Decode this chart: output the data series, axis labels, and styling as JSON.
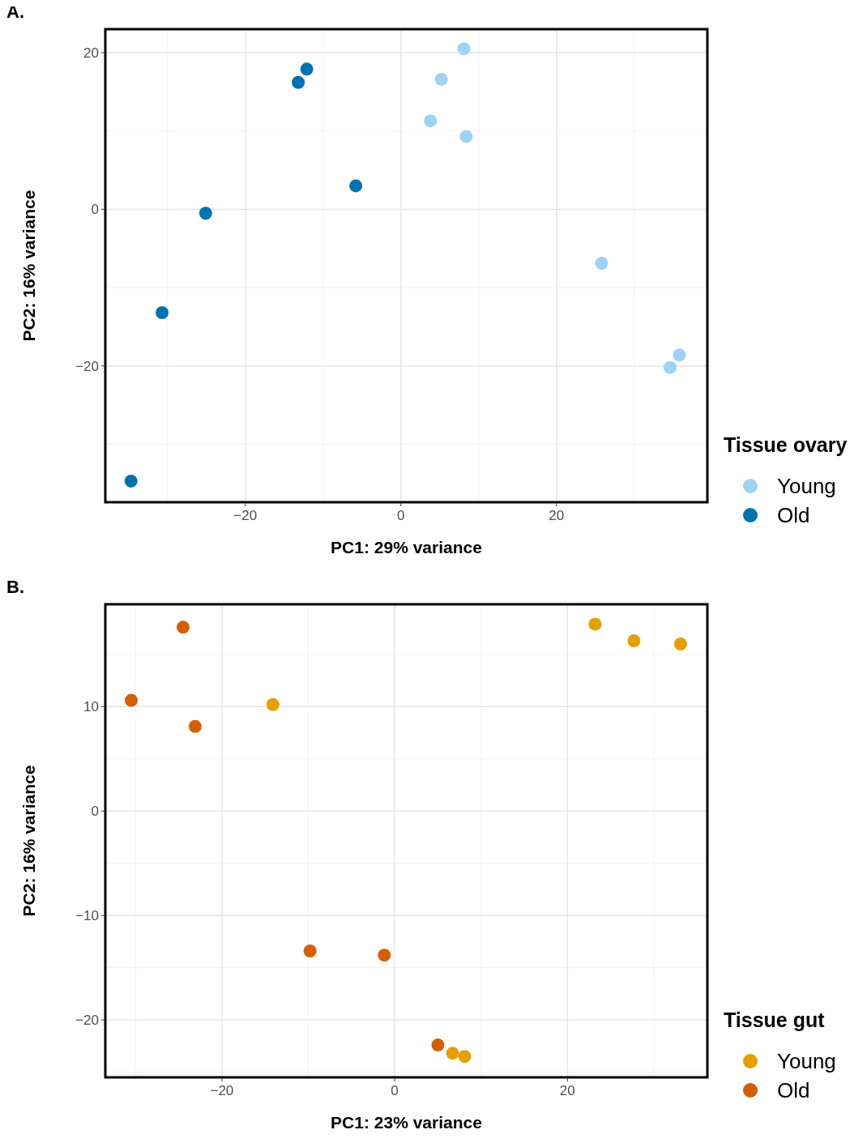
{
  "chart_data": [
    {
      "type": "scatter",
      "title": "A.",
      "xlabel": "PC1: 29% variance",
      "ylabel": "PC2: 16% variance",
      "legend_title": "Tissue ovary",
      "legend": "right",
      "grid": true,
      "marker": "circle",
      "xlim": [
        -38,
        39.4
      ],
      "ylim": [
        -37.4,
        23
      ],
      "xticks": [
        -20,
        0,
        20
      ],
      "yticks": [
        -20,
        0,
        20
      ],
      "series": [
        {
          "name": "Young",
          "color": "#9dd3f4",
          "x": [
            8.1,
            5.2,
            3.8,
            8.4,
            25.8,
            35.8,
            34.6
          ],
          "values": [
            20.5,
            16.6,
            11.3,
            9.3,
            -6.9,
            -18.6,
            -20.2
          ]
        },
        {
          "name": "Old",
          "color": "#0072b2",
          "x": [
            -12.1,
            -13.2,
            -5.8,
            -25.1,
            -30.7,
            -34.7
          ],
          "values": [
            17.9,
            16.2,
            3.0,
            -0.5,
            -13.2,
            -34.7
          ]
        }
      ]
    },
    {
      "type": "scatter",
      "title": "B.",
      "xlabel": "PC1: 23% variance",
      "ylabel": "PC2: 16% variance",
      "legend_title": "Tissue gut",
      "legend": "right",
      "grid": true,
      "marker": "circle",
      "xlim": [
        -33.5,
        36.2
      ],
      "ylim": [
        -25.5,
        19.8
      ],
      "xticks": [
        -20,
        0,
        20
      ],
      "yticks": [
        -20,
        -10,
        0,
        10
      ],
      "series": [
        {
          "name": "Young",
          "color": "#e69f00",
          "x": [
            23.2,
            27.7,
            33.1,
            -14.1,
            6.7,
            8.1
          ],
          "values": [
            17.9,
            16.3,
            16.0,
            10.2,
            -23.2,
            -23.5
          ]
        },
        {
          "name": "Old",
          "color": "#d55e00",
          "x": [
            -24.5,
            -30.5,
            -23.1,
            -9.8,
            -1.2,
            5.0
          ],
          "values": [
            17.6,
            10.6,
            8.1,
            -13.4,
            -13.8,
            -22.4
          ]
        }
      ]
    }
  ]
}
